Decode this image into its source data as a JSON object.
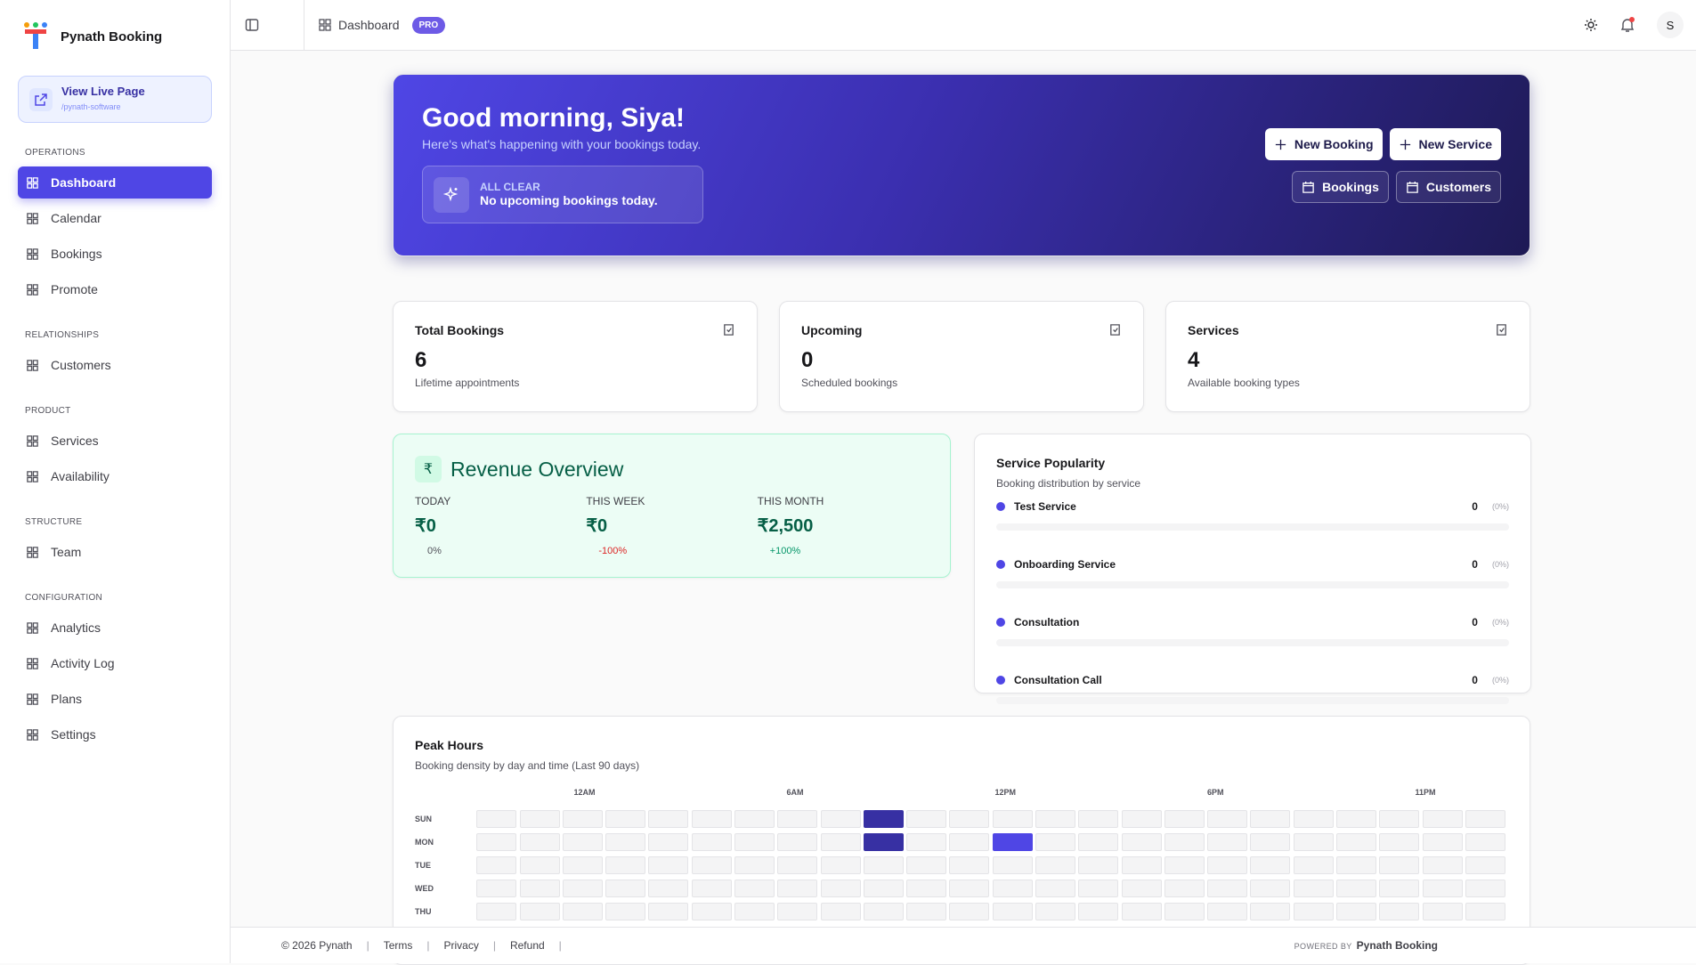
{
  "sidebar": {
    "brand": "Pynath Booking",
    "live_page": {
      "title": "View Live Page",
      "path": "/pynath-software"
    },
    "sections": [
      {
        "label": "OPERATIONS",
        "items": [
          "Dashboard",
          "Calendar",
          "Bookings",
          "Promote"
        ]
      },
      {
        "label": "RELATIONSHIPS",
        "items": [
          "Customers"
        ]
      },
      {
        "label": "PRODUCT",
        "items": [
          "Services",
          "Availability"
        ]
      },
      {
        "label": "STRUCTURE",
        "items": [
          "Team"
        ]
      },
      {
        "label": "CONFIGURATION",
        "items": [
          "Analytics",
          "Activity Log",
          "Plans",
          "Settings"
        ]
      }
    ]
  },
  "header": {
    "breadcrumb": "Dashboard",
    "badge": "PRO",
    "avatar": "S"
  },
  "hero": {
    "greeting": "Good morning, Siya!",
    "subtitle": "Here's what's happening with your bookings today.",
    "status_label": "ALL CLEAR",
    "status_text": "No upcoming bookings today.",
    "actions": [
      "New Booking",
      "New Service"
    ],
    "links": [
      "Bookings",
      "Customers"
    ]
  },
  "stats": [
    {
      "title": "Total Bookings",
      "value": 6,
      "caption": "Lifetime appointments"
    },
    {
      "title": "Upcoming",
      "value": 0,
      "caption": "Scheduled bookings"
    },
    {
      "title": "Services",
      "value": 4,
      "caption": "Available booking types"
    }
  ],
  "revenue": {
    "title": "Revenue Overview",
    "periods": [
      {
        "label": "TODAY",
        "amount": "₹0",
        "change": "0%"
      },
      {
        "label": "THIS WEEK",
        "amount": "₹0",
        "change": "-100%"
      },
      {
        "label": "THIS MONTH",
        "amount": "₹2,500",
        "change": "+100%"
      }
    ]
  },
  "popularity": {
    "title": "Service Popularity",
    "subtitle": "Booking distribution by service",
    "services": [
      {
        "name": "Test Service",
        "count": 0,
        "share": "(0%)"
      },
      {
        "name": "Onboarding Service",
        "count": 0,
        "share": "(0%)"
      },
      {
        "name": "Consultation",
        "count": 0,
        "share": "(0%)"
      },
      {
        "name": "Consultation Call",
        "count": 0,
        "share": "(0%)"
      }
    ]
  },
  "peak_hours": {
    "title": "Peak Hours",
    "subtitle": "Booking density by day and time (Last 90 days)",
    "hour_labels": [
      "12AM",
      "6AM",
      "12PM",
      "6PM",
      "11PM"
    ],
    "days": [
      "SUN",
      "MON",
      "TUE",
      "WED",
      "THU"
    ],
    "cells": [
      [
        0,
        0,
        0,
        0,
        0,
        0,
        0,
        0,
        0,
        2,
        0,
        0,
        0,
        0,
        0,
        0,
        0,
        0,
        0,
        0,
        0,
        0,
        0,
        0
      ],
      [
        0,
        0,
        0,
        0,
        0,
        0,
        0,
        0,
        0,
        2,
        0,
        0,
        1,
        0,
        0,
        0,
        0,
        0,
        0,
        0,
        0,
        0,
        0,
        0
      ],
      [
        0,
        0,
        0,
        0,
        0,
        0,
        0,
        0,
        0,
        0,
        0,
        0,
        0,
        0,
        0,
        0,
        0,
        0,
        0,
        0,
        0,
        0,
        0,
        0
      ],
      [
        0,
        0,
        0,
        0,
        0,
        0,
        0,
        0,
        0,
        0,
        0,
        0,
        0,
        0,
        0,
        0,
        0,
        0,
        0,
        0,
        0,
        0,
        0,
        0
      ],
      [
        0,
        0,
        0,
        0,
        0,
        0,
        0,
        0,
        0,
        0,
        0,
        0,
        0,
        0,
        0,
        0,
        0,
        0,
        0,
        0,
        0,
        0,
        0,
        0
      ]
    ]
  },
  "footer": {
    "copyright": "© 2026 Pynath",
    "links": [
      "Terms",
      "Privacy",
      "Refund"
    ],
    "powered_label": "POWERED BY",
    "powered_name": "Pynath Booking"
  }
}
